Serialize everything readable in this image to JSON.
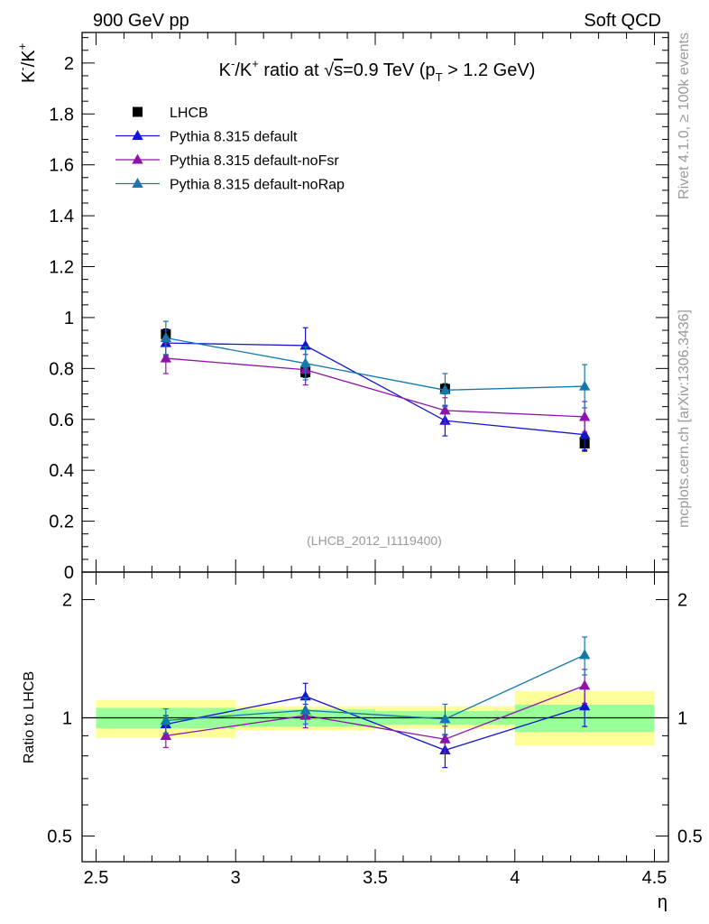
{
  "header": {
    "left": "900 GeV pp",
    "right": "Soft QCD"
  },
  "side": {
    "rivet": "Rivet 4.1.0, ≥ 100k events",
    "mcplots": "mcplots.cern.ch [arXiv:1306.3436]"
  },
  "chart_data": [
    {
      "type": "scatter",
      "panel": "main",
      "title": "K⁻/K⁺ ratio at √s=0.9 TeV (p_T > 1.2 GeV)",
      "title_parts": {
        "pre": "K",
        "sup1": "-",
        "mid1": "/K",
        "sup2": "+",
        "mid2": " ratio at ",
        "root": "√",
        "s": "s",
        "mid3": "=0.9 TeV (p",
        "sub": "T",
        "post": " > 1.2 GeV)"
      },
      "ylabel_parts": {
        "a": "K",
        "sup1": "-",
        "b": "/K",
        "sup2": "+"
      },
      "ylabel": "K⁻/K⁺",
      "xlim": [
        2.45,
        4.55
      ],
      "ylim": [
        0,
        2.12
      ],
      "yticks": [
        0,
        0.2,
        0.4,
        0.6,
        0.8,
        1,
        1.2,
        1.4,
        1.6,
        1.8,
        2
      ],
      "ytick_labels": [
        "0",
        "0.2",
        "0.4",
        "0.6",
        "0.8",
        "1",
        "1.2",
        "1.4",
        "1.6",
        "1.8",
        "2"
      ],
      "annotation": "(LHCB_2012_I1119400)",
      "legend_position": "top-left",
      "x": [
        2.75,
        3.25,
        3.75,
        4.25
      ],
      "series": [
        {
          "name": "LHCB",
          "color": "#000000",
          "marker": "square",
          "values": [
            0.935,
            0.785,
            0.72,
            0.505
          ],
          "err": [
            0.02,
            0.02,
            0.02,
            0.03
          ]
        },
        {
          "name": "Pythia 8.315 default",
          "color": "#1414d2",
          "marker": "triangle",
          "values": [
            0.9,
            0.89,
            0.595,
            0.54
          ],
          "err": [
            0.05,
            0.07,
            0.06,
            0.06
          ]
        },
        {
          "name": "Pythia 8.315 default-noFsr",
          "color": "#8c14aa",
          "marker": "triangle",
          "values": [
            0.84,
            0.795,
            0.635,
            0.61
          ],
          "err": [
            0.06,
            0.06,
            0.05,
            0.06
          ]
        },
        {
          "name": "Pythia 8.315 default-noRap",
          "color": "#1478aa",
          "marker": "triangle",
          "values": [
            0.92,
            0.82,
            0.715,
            0.73
          ],
          "err": [
            0.065,
            0.065,
            0.065,
            0.085
          ]
        }
      ]
    },
    {
      "type": "scatter",
      "panel": "ratio",
      "ylabel": "Ratio to LHCB",
      "xlabel": "η",
      "xlim": [
        2.45,
        4.55
      ],
      "ylim": [
        0.43,
        2.35
      ],
      "yscale": "log",
      "yticks": [
        0.5,
        1,
        2
      ],
      "ytick_labels": [
        "0.5",
        "1",
        "2"
      ],
      "xticks": [
        2.5,
        3,
        3.5,
        4,
        4.5
      ],
      "xtick_labels": [
        "2.5",
        "3",
        "3.5",
        "4",
        "4.5"
      ],
      "x": [
        2.75,
        3.25,
        3.75,
        4.25
      ],
      "bin_edges": [
        2.5,
        3,
        3.5,
        4,
        4.5
      ],
      "band_inner": [
        [
          0.94,
          1.06
        ],
        [
          0.95,
          1.05
        ],
        [
          0.96,
          1.04
        ],
        [
          0.92,
          1.08
        ]
      ],
      "band_outer": [
        [
          0.89,
          1.11
        ],
        [
          0.93,
          1.07
        ],
        [
          0.94,
          1.07
        ],
        [
          0.85,
          1.17
        ]
      ],
      "series": [
        {
          "name": "Pythia 8.315 default",
          "color": "#1414d2",
          "values": [
            0.963,
            1.134,
            0.827,
            1.07
          ],
          "err": [
            0.05,
            0.09,
            0.08,
            0.12
          ]
        },
        {
          "name": "Pythia 8.315 default-noFsr",
          "color": "#8c14aa",
          "values": [
            0.9,
            1.013,
            0.882,
            1.208
          ],
          "err": [
            0.06,
            0.07,
            0.07,
            0.12
          ]
        },
        {
          "name": "Pythia 8.315 default-noRap",
          "color": "#1478aa",
          "values": [
            0.984,
            1.045,
            0.993,
            1.446
          ],
          "err": [
            0.07,
            0.08,
            0.09,
            0.16
          ]
        }
      ]
    }
  ]
}
